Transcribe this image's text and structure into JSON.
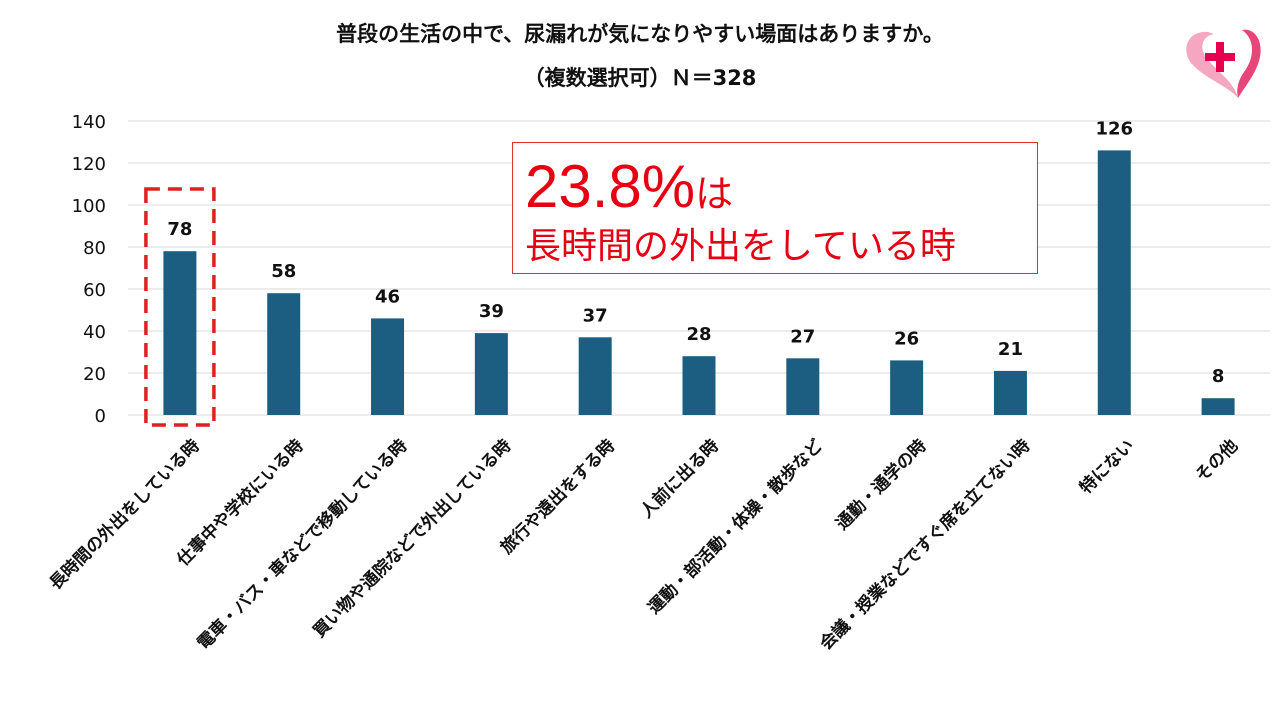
{
  "title_line1": "普段の生活の中で、尿漏れが気になりやすい場面はありますか。",
  "title_line2": "（複数選択可）Ｎ＝328",
  "callout": {
    "percent": "23.8%",
    "suffix": "は",
    "subtitle": "長時間の外出をしている時"
  },
  "colors": {
    "bar": "#1b5e82",
    "highlight": "#e02020",
    "callout_text": "#e60012",
    "logo": "#e8457a"
  },
  "logo_icon": "plus-heart-logo-icon",
  "chart_data": {
    "type": "bar",
    "title": "普段の生活の中で、尿漏れが気になりやすい場面はありますか。",
    "subtitle": "（複数選択可）Ｎ＝328",
    "categories": [
      "長時間の外出をしている時",
      "仕事中や学校にいる時",
      "電車・バス・車などで移動している時",
      "買い物や通院などで外出している時",
      "旅行や遠出をする時",
      "人前に出る時",
      "運動・部活動・体操・散歩など",
      "通勤・通学の時",
      "会議・授業などですぐ席を立てない時",
      "特にない",
      "その他"
    ],
    "values": [
      78,
      58,
      46,
      39,
      37,
      28,
      27,
      26,
      21,
      126,
      8
    ],
    "yticks": [
      "0",
      "20",
      "40",
      "60",
      "80",
      "100",
      "120",
      "140"
    ],
    "ylim": [
      0,
      140
    ],
    "grid": true,
    "highlighted_category": "長時間の外出をしている時",
    "xlabel": "",
    "ylabel": ""
  }
}
